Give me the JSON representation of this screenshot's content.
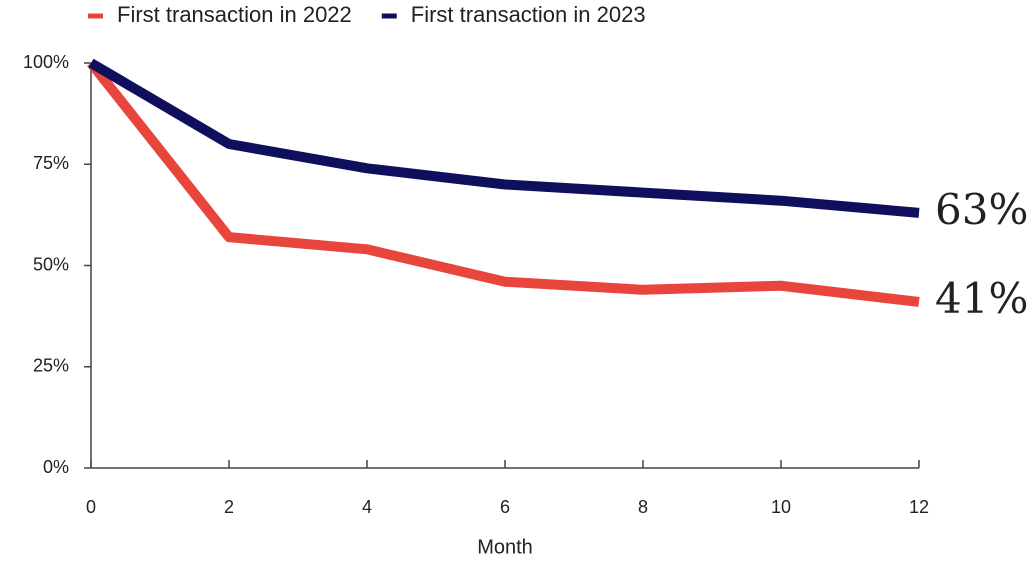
{
  "chart_data": {
    "type": "line",
    "xlabel": "Month",
    "x": [
      0,
      2,
      4,
      6,
      8,
      10,
      12
    ],
    "series": [
      {
        "name": "First transaction in 2022",
        "color": "#e8453c",
        "values": [
          100,
          57,
          54,
          46,
          44,
          45,
          41
        ],
        "value_labels": [
          null,
          null,
          null,
          null,
          null,
          null,
          "41%"
        ]
      },
      {
        "name": "First transaction in 2023",
        "color": "#0f0f5e",
        "values": [
          100,
          80,
          74,
          70,
          68,
          66,
          63
        ],
        "value_labels": [
          null,
          null,
          null,
          null,
          null,
          null,
          "63%"
        ]
      }
    ],
    "xlim": [
      0,
      12
    ],
    "xticks": [
      0,
      2,
      4,
      6,
      8,
      10,
      12
    ],
    "ylim": [
      0,
      100
    ],
    "yticks": [
      {
        "value": 0,
        "label": "0%"
      },
      {
        "value": 25,
        "label": "25%"
      },
      {
        "value": 50,
        "label": "50%"
      },
      {
        "value": 75,
        "label": "75%"
      },
      {
        "value": 100,
        "label": "100%"
      }
    ],
    "grid": false,
    "legend": "top"
  }
}
